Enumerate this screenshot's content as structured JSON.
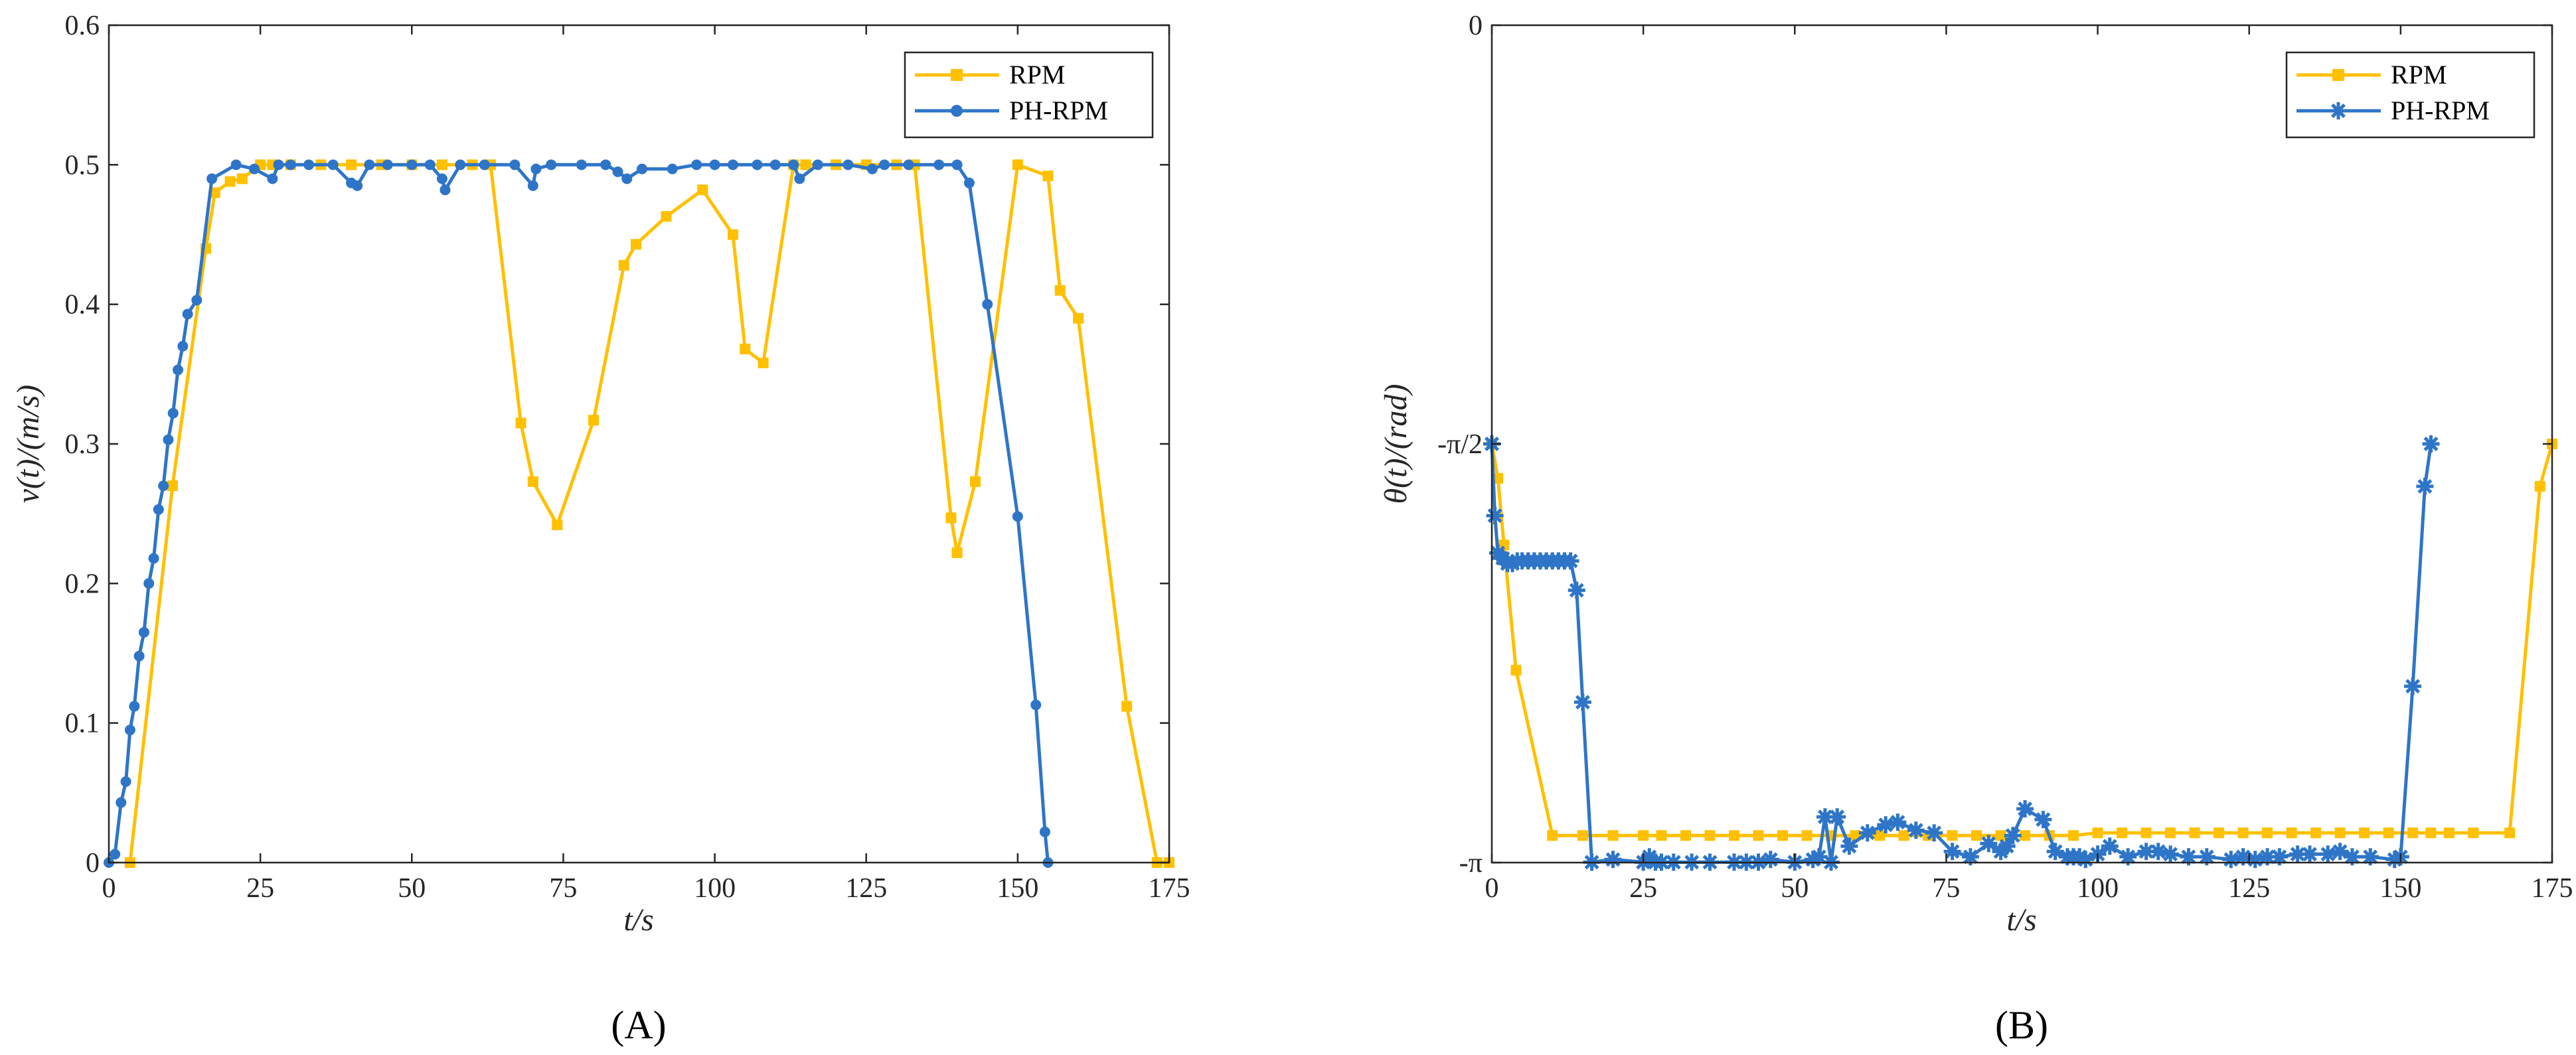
{
  "colors": {
    "rpm": "#FFC000",
    "ph_rpm": "#2E75C8",
    "axis": "#262626"
  },
  "chart_data": [
    {
      "type": "line",
      "panel_label": "(A)",
      "xlabel": "t/s",
      "ylabel": "v(t)/(m/s)",
      "xlim": [
        0,
        175
      ],
      "ylim": [
        0,
        0.6
      ],
      "xticks": [
        0,
        25,
        50,
        75,
        100,
        125,
        150,
        175
      ],
      "xtick_labels": [
        "0",
        "25",
        "50",
        "75",
        "100",
        "125",
        "150",
        "175"
      ],
      "yticks": [
        0,
        0.1,
        0.2,
        0.3,
        0.4,
        0.5,
        0.6
      ],
      "ytick_labels": [
        "0",
        "0.1",
        "0.2",
        "0.3",
        "0.4",
        "0.5",
        "0.6"
      ],
      "grid": false,
      "legend_position": "top-right",
      "series": [
        {
          "name": "RPM",
          "color": "#FFC000",
          "marker": "square",
          "x": [
            3.5,
            10.5,
            16,
            17.5,
            20,
            22,
            25,
            27,
            30,
            35,
            40,
            45,
            50,
            55,
            60,
            63,
            68,
            70,
            74,
            80,
            85,
            87,
            92,
            98,
            103,
            105,
            108,
            113,
            115,
            120,
            125,
            130,
            133,
            139,
            140,
            143,
            150,
            155,
            157,
            160,
            168,
            173,
            175
          ],
          "y": [
            0,
            0.27,
            0.44,
            0.48,
            0.488,
            0.49,
            0.5,
            0.5,
            0.5,
            0.5,
            0.5,
            0.5,
            0.5,
            0.5,
            0.5,
            0.5,
            0.315,
            0.273,
            0.242,
            0.317,
            0.428,
            0.443,
            0.463,
            0.482,
            0.45,
            0.368,
            0.358,
            0.5,
            0.5,
            0.5,
            0.5,
            0.5,
            0.5,
            0.247,
            0.222,
            0.273,
            0.5,
            0.492,
            0.41,
            0.39,
            0.112,
            0,
            0
          ]
        },
        {
          "name": "PH-RPM",
          "color": "#2E75C8",
          "marker": "circle",
          "x": [
            0,
            1,
            2,
            2.8,
            3.5,
            4.2,
            5,
            5.8,
            6.6,
            7.4,
            8.2,
            9,
            9.8,
            10.6,
            11.4,
            12.2,
            13,
            14.5,
            17,
            21,
            24,
            27,
            28,
            30,
            33,
            37,
            40,
            41,
            43,
            46,
            50,
            53,
            55,
            55.5,
            58,
            62,
            67,
            70,
            70.5,
            73,
            78,
            82,
            84,
            85.5,
            88,
            93,
            97,
            100,
            103,
            107,
            110,
            113,
            114,
            117,
            122,
            126,
            128,
            132,
            137,
            140,
            142,
            145,
            150,
            153,
            154.5,
            155
          ],
          "y": [
            0,
            0.006,
            0.043,
            0.058,
            0.095,
            0.112,
            0.148,
            0.165,
            0.2,
            0.218,
            0.253,
            0.27,
            0.303,
            0.322,
            0.353,
            0.37,
            0.393,
            0.403,
            0.49,
            0.5,
            0.497,
            0.49,
            0.5,
            0.5,
            0.5,
            0.5,
            0.487,
            0.485,
            0.5,
            0.5,
            0.5,
            0.5,
            0.49,
            0.482,
            0.5,
            0.5,
            0.5,
            0.485,
            0.497,
            0.5,
            0.5,
            0.5,
            0.495,
            0.49,
            0.497,
            0.497,
            0.5,
            0.5,
            0.5,
            0.5,
            0.5,
            0.5,
            0.49,
            0.5,
            0.5,
            0.497,
            0.5,
            0.5,
            0.5,
            0.5,
            0.487,
            0.4,
            0.248,
            0.113,
            0.022,
            0
          ]
        }
      ]
    },
    {
      "type": "line",
      "panel_label": "(B)",
      "xlabel": "t/s",
      "ylabel": "θ(t)/(rad)",
      "xlim": [
        0,
        175
      ],
      "ylim": [
        -3.14159,
        0
      ],
      "xticks": [
        0,
        25,
        50,
        75,
        100,
        125,
        150,
        175
      ],
      "xtick_labels": [
        "0",
        "25",
        "50",
        "75",
        "100",
        "125",
        "150",
        "175"
      ],
      "yticks": [
        -3.14159,
        -1.5708,
        0
      ],
      "ytick_labels": [
        "-π",
        "-π/2",
        "0"
      ],
      "grid": false,
      "legend_position": "top-right",
      "series": [
        {
          "name": "RPM",
          "color": "#FFC000",
          "marker": "square",
          "x": [
            0,
            1,
            2,
            4,
            10,
            15,
            20,
            25,
            28,
            32,
            36,
            40,
            44,
            48,
            52,
            56,
            60,
            64,
            68,
            72,
            76,
            80,
            84,
            88,
            92,
            96,
            100,
            104,
            108,
            112,
            116,
            120,
            124,
            128,
            132,
            136,
            140,
            144,
            148,
            152,
            155,
            158,
            162,
            168,
            173,
            175
          ],
          "y": [
            -1.5708,
            -1.7,
            -1.95,
            -2.42,
            -3.04,
            -3.04,
            -3.04,
            -3.04,
            -3.04,
            -3.04,
            -3.04,
            -3.04,
            -3.04,
            -3.04,
            -3.04,
            -3.04,
            -3.04,
            -3.04,
            -3.04,
            -3.04,
            -3.04,
            -3.04,
            -3.04,
            -3.04,
            -3.04,
            -3.04,
            -3.03,
            -3.03,
            -3.03,
            -3.03,
            -3.03,
            -3.03,
            -3.03,
            -3.03,
            -3.03,
            -3.03,
            -3.03,
            -3.03,
            -3.03,
            -3.03,
            -3.03,
            -3.03,
            -3.03,
            -3.03,
            -1.73,
            -1.5708
          ]
        },
        {
          "name": "PH-RPM",
          "color": "#2E75C8",
          "marker": "star",
          "x": [
            0,
            0.5,
            1,
            1.8,
            2.6,
            3.4,
            4.2,
            5,
            6,
            7,
            8,
            9,
            10,
            11,
            12,
            13,
            14,
            15,
            16.5,
            20,
            25,
            26,
            27,
            28,
            30,
            33,
            36,
            40,
            42,
            44,
            46,
            50,
            53,
            54,
            55,
            56,
            57,
            59,
            62,
            65,
            67,
            70,
            73,
            76,
            79,
            82,
            84,
            85,
            86,
            88,
            91,
            93,
            95,
            96,
            97,
            98,
            100,
            102,
            105,
            108,
            110,
            112,
            115,
            118,
            122,
            124,
            126,
            128,
            130,
            133,
            135,
            138,
            140,
            142,
            145,
            149,
            150,
            152,
            154,
            155
          ],
          "y": [
            -1.5708,
            -1.84,
            -1.98,
            -2.0,
            -2.02,
            -2.02,
            -2.01,
            -2.01,
            -2.01,
            -2.01,
            -2.01,
            -2.01,
            -2.01,
            -2.01,
            -2.01,
            -2.01,
            -2.12,
            -2.54,
            -3.14,
            -3.13,
            -3.14,
            -3.12,
            -3.14,
            -3.14,
            -3.14,
            -3.14,
            -3.14,
            -3.14,
            -3.14,
            -3.14,
            -3.13,
            -3.14,
            -3.13,
            -3.12,
            -2.97,
            -3.14,
            -2.97,
            -3.08,
            -3.03,
            -3.0,
            -2.99,
            -3.02,
            -3.03,
            -3.1,
            -3.12,
            -3.07,
            -3.1,
            -3.08,
            -3.04,
            -2.94,
            -2.98,
            -3.1,
            -3.12,
            -3.12,
            -3.12,
            -3.13,
            -3.11,
            -3.08,
            -3.12,
            -3.1,
            -3.1,
            -3.11,
            -3.12,
            -3.12,
            -3.13,
            -3.12,
            -3.13,
            -3.12,
            -3.12,
            -3.11,
            -3.11,
            -3.11,
            -3.1,
            -3.12,
            -3.12,
            -3.13,
            -3.12,
            -2.48,
            -1.73,
            -1.5708
          ]
        }
      ]
    }
  ]
}
